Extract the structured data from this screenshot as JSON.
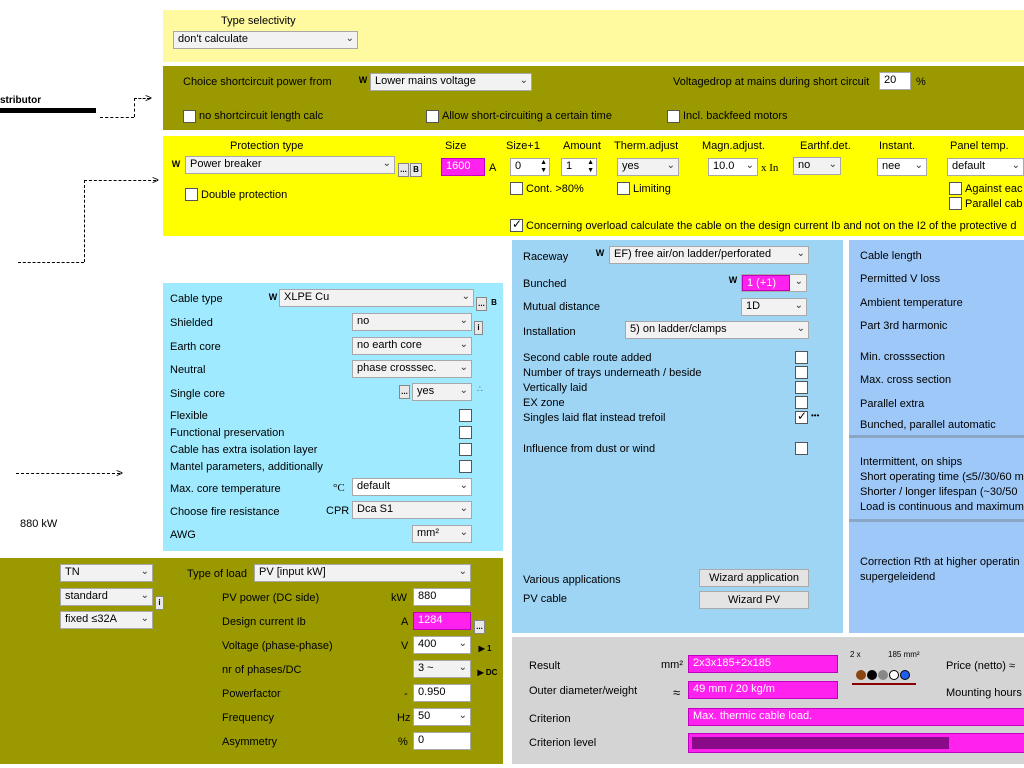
{
  "colors": {
    "yellow_light": "#fffaa0",
    "olive": "#9a9a00",
    "yellow": "#ffff00",
    "cyan": "#9feaff",
    "lightblue": "#9ed4f4",
    "blue": "#9ec8f8",
    "gray": "#d4d4d4",
    "magenta": "#ff22ee"
  },
  "left": {
    "distributor_label": "stributor",
    "power_label": "880 kW"
  },
  "type_selectivity": {
    "title": "Type selectivity",
    "value": "don't calculate"
  },
  "shortcircuit": {
    "choice_label": "Choice shortcircuit power from",
    "choice_value": "Lower mains voltage",
    "voltagedrop_label": "Voltagedrop at mains during short circuit",
    "voltagedrop_value": "20",
    "voltagedrop_unit": "%",
    "no_length_calc": "no shortcircuit length calc",
    "allow_short": "Allow short-circuiting a certain time",
    "incl_backfeed": "Incl. backfeed motors"
  },
  "protection": {
    "col_protection_type": "Protection type",
    "col_size": "Size",
    "col_size_plus1": "Size+1",
    "col_amount": "Amount",
    "col_therm": "Therm.adjust",
    "col_magn": "Magn.adjust.",
    "col_earthf": "Earthf.det.",
    "col_instant": "Instant.",
    "col_panel_temp": "Panel temp.",
    "type_value": "Power breaker",
    "size_value": "1600",
    "size_unit": "A",
    "size_plus1_value": "0",
    "amount_value": "1",
    "therm_value": "yes",
    "magn_value": "10.0",
    "magn_unit": "x In",
    "earthf_value": "no",
    "instant_value": "nee",
    "panel_temp_value": "default",
    "double_protection": "Double protection",
    "cont_80": "Cont. >80%",
    "limiting": "Limiting",
    "against_each": "Against eac",
    "parallel_cab": "Parallel cab",
    "overload_note": "Concerning overload calculate the cable on the design current Ib and not on the I2 of the protective d",
    "dots_label": "...",
    "b_label": "B",
    "w_label": "W"
  },
  "cable": {
    "cable_type_label": "Cable type",
    "cable_type_value": "XLPE Cu",
    "shielded_label": "Shielded",
    "shielded_value": "no",
    "earth_core_label": "Earth core",
    "earth_core_value": "no earth core",
    "neutral_label": "Neutral",
    "neutral_value": "phase crosssec.",
    "single_core_label": "Single core",
    "single_core_value": "yes",
    "flexible": "Flexible",
    "functional_preservation": "Functional preservation",
    "extra_isolation": "Cable has extra isolation layer",
    "mantel_params": "Mantel parameters, additionally",
    "max_core_temp_label": "Max. core temperature",
    "max_core_temp_unit": "°C",
    "max_core_temp_value": "default",
    "fire_resistance_label": "Choose fire resistance",
    "fire_resistance_unit": "CPR",
    "fire_resistance_value": "Dca S1",
    "awg_label": "AWG",
    "awg_value": "mm²",
    "info_label": "i"
  },
  "raceway": {
    "raceway_label": "Raceway",
    "raceway_value": "EF) free air/on ladder/perforated",
    "bunched_label": "Bunched",
    "bunched_value": "1 (+1)",
    "mutual_distance_label": "Mutual distance",
    "mutual_distance_value": "1D",
    "installation_label": "Installation",
    "installation_value": "5) on ladder/clamps",
    "second_route": "Second cable route added",
    "nr_trays": "Number of trays underneath / beside",
    "vertically_laid": "Vertically laid",
    "ex_zone": "EX zone",
    "singles_flat": "Singles laid flat instead trefoil",
    "dust_wind": "Influence from dust or wind",
    "various_apps": "Various applications",
    "pv_cable": "PV cable",
    "wizard_app": "Wizard application",
    "wizard_pv": "Wizard PV",
    "dots3": "•••"
  },
  "right": {
    "cable_length": "Cable length",
    "permitted_v_loss": "Permitted V loss",
    "ambient_temp": "Ambient temperature",
    "part_3rd_harmonic": "Part 3rd harmonic",
    "min_cross": "Min. crosssection",
    "max_cross": "Max. cross section",
    "parallel_extra": "Parallel extra",
    "bunched_parallel": "Bunched, parallel automatic",
    "intermittent": "Intermittent, on ships",
    "short_operating": "Short operating time (≤5//30/60 m",
    "shorter_longer": "Shorter / longer lifespan (~30/50",
    "load_continuous": "Load is continuous and maximum",
    "correction_rth": "Correction Rth at higher operatin",
    "supergeleidend": "supergeleidend"
  },
  "load": {
    "network_value": "TN",
    "standard_value": "standard",
    "fixed_value": "fixed ≤32A",
    "type_of_load_label": "Type of load",
    "type_of_load_value": "PV [input kW]",
    "pv_power_label": "PV power (DC side)",
    "pv_power_unit": "kW",
    "pv_power_value": "880",
    "design_current_label": "Design current Ib",
    "design_current_unit": "A",
    "design_current_value": "1284",
    "voltage_label": "Voltage (phase-phase)",
    "voltage_unit": "V",
    "voltage_value": "400",
    "phases_label": "nr of phases/DC",
    "phases_value": "3 ~",
    "powerfactor_label": "Powerfactor",
    "powerfactor_unit": "-",
    "powerfactor_value": "0.950",
    "frequency_label": "Frequency",
    "frequency_unit": "Hz",
    "frequency_value": "50",
    "asymmetry_label": "Asymmetry",
    "asymmetry_unit": "%",
    "asymmetry_value": "0",
    "btn_1": "▶ 1",
    "btn_dc": "▶ DC"
  },
  "result": {
    "result_label": "Result",
    "result_unit": "mm²",
    "result_value": "2x3x185+2x185",
    "outer_label": "Outer diameter/weight",
    "outer_unit": "≈",
    "outer_value": "49 mm / 20 kg/m",
    "criterion_label": "Criterion",
    "criterion_value": "Max. thermic cable load.",
    "criterion_level_label": "Criterion level",
    "criterion_level_fraction": 0.78,
    "diagram_count": "2 x",
    "diagram_size": "185 mm²",
    "price_label": "Price (netto) ≈",
    "mounting_label": "Mounting hours"
  }
}
